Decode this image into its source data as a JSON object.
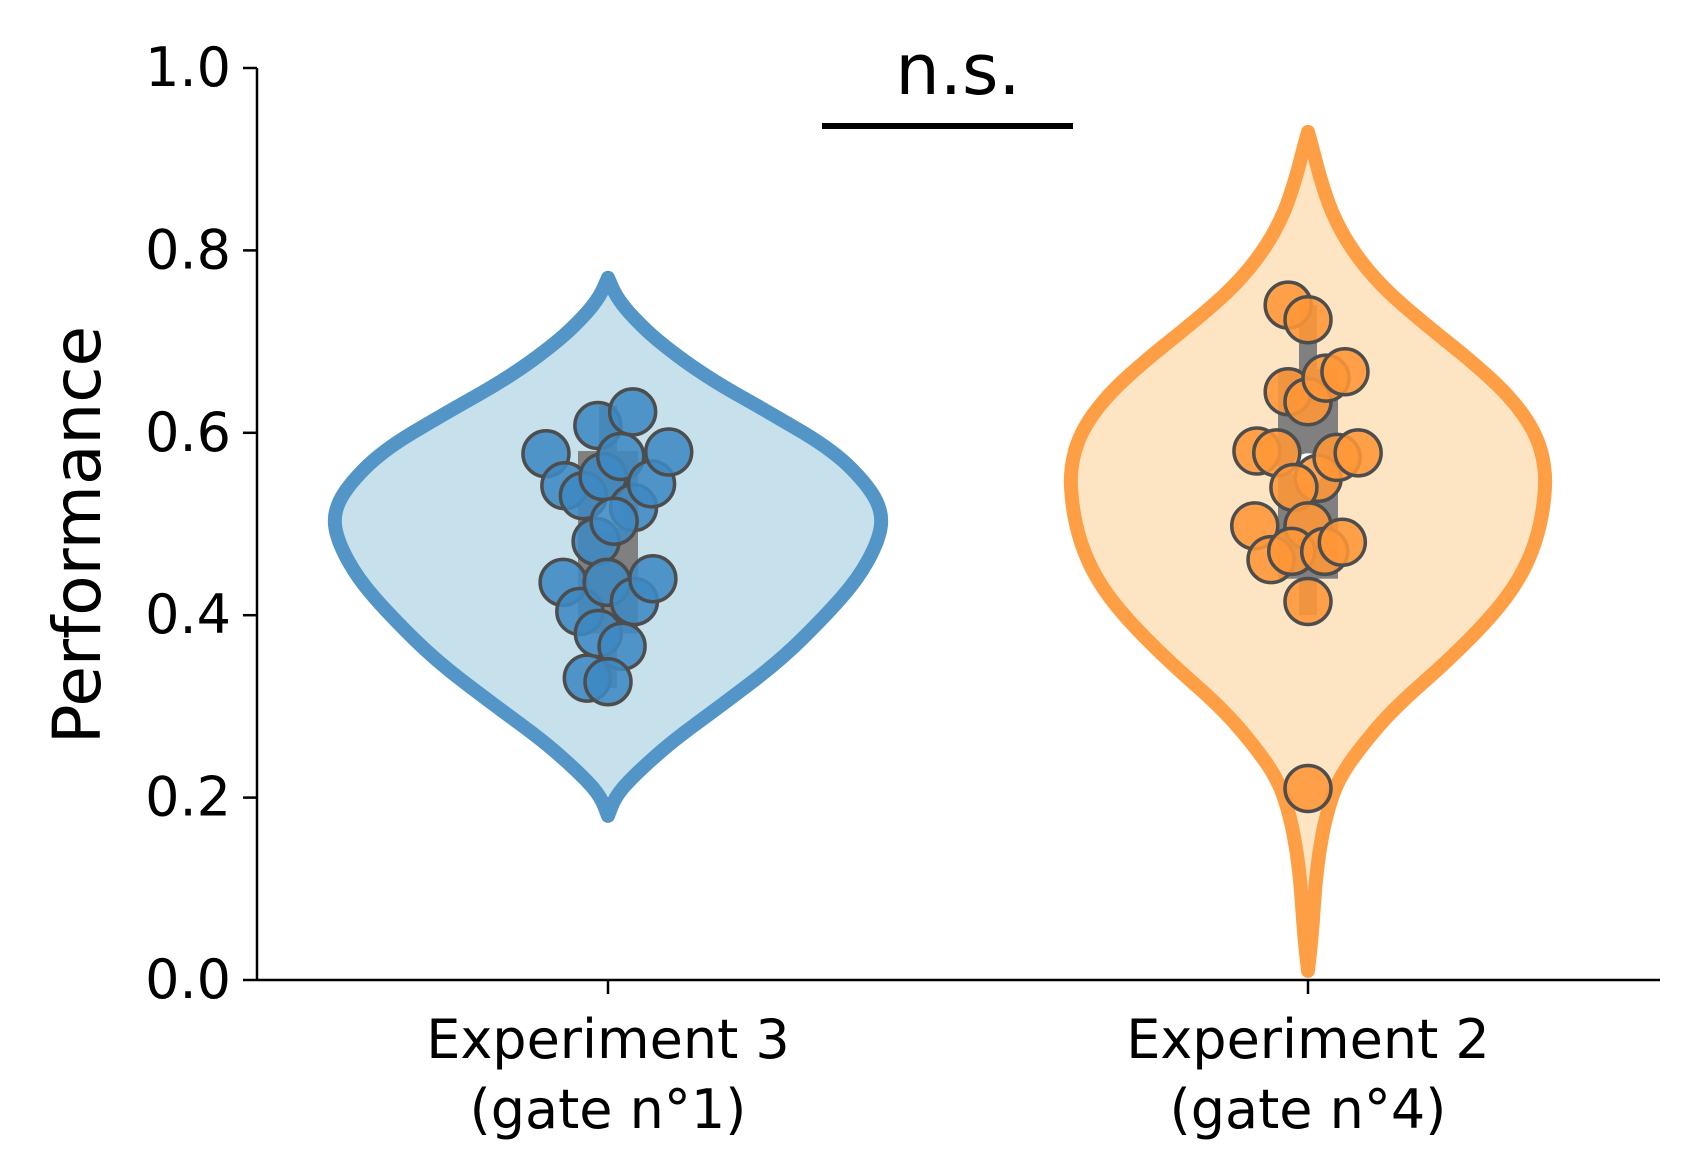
{
  "chart_data": {
    "type": "violin",
    "title": "",
    "xlabel": "",
    "ylabel": "Performance",
    "ylim": [
      0,
      1
    ],
    "yticks": [
      "0.0",
      "0.2",
      "0.4",
      "0.6",
      "0.8",
      "1.0"
    ],
    "significance": "n.s.",
    "grid": false,
    "colors": {
      "exp3_edge": "#4a90c4",
      "exp3_fill": "#c3e0ec",
      "exp3_point": "#3f89c3",
      "exp2_edge": "#ff9a3c",
      "exp2_fill": "#fde3c0",
      "exp2_point": "#ff9637",
      "box": "#808080"
    },
    "groups": [
      {
        "label_line1": "Experiment 3",
        "label_line2": "(gate n°1)",
        "median": 0.51,
        "q1": 0.38,
        "q3": 0.58,
        "whisker_low": 0.32,
        "whisker_high": 0.63,
        "range": [
          0.18,
          0.77
        ],
        "points": [
          {
            "x": -1.41,
            "y": 0.577
          },
          {
            "x": -0.98,
            "y": 0.542
          },
          {
            "x": -0.56,
            "y": 0.531
          },
          {
            "x": -0.23,
            "y": 0.608
          },
          {
            "x": -0.11,
            "y": 0.552
          },
          {
            "x": 0.29,
            "y": 0.574
          },
          {
            "x": 0.56,
            "y": 0.623
          },
          {
            "x": 0.58,
            "y": 0.518
          },
          {
            "x": 0.99,
            "y": 0.544
          },
          {
            "x": 1.38,
            "y": 0.579
          },
          {
            "x": -0.27,
            "y": 0.481
          },
          {
            "x": 0.14,
            "y": 0.503
          },
          {
            "x": -1.02,
            "y": 0.436
          },
          {
            "x": -0.64,
            "y": 0.404
          },
          {
            "x": -0.02,
            "y": 0.436
          },
          {
            "x": 0.6,
            "y": 0.415
          },
          {
            "x": 1.02,
            "y": 0.44
          },
          {
            "x": -0.22,
            "y": 0.38
          },
          {
            "x": 0.32,
            "y": 0.366
          },
          {
            "x": -0.47,
            "y": 0.331
          },
          {
            "x": 0.0,
            "y": 0.327
          }
        ]
      },
      {
        "label_line1": "Experiment 2",
        "label_line2": "(gate n°4)",
        "median": 0.56,
        "q1": 0.44,
        "q3": 0.67,
        "whisker_low": 0.4,
        "whisker_high": 0.74,
        "range": [
          0.01,
          0.93
        ],
        "points": [
          {
            "x": -0.45,
            "y": 0.74
          },
          {
            "x": 0.0,
            "y": 0.724
          },
          {
            "x": -0.45,
            "y": 0.645
          },
          {
            "x": 0.0,
            "y": 0.634
          },
          {
            "x": 0.41,
            "y": 0.66
          },
          {
            "x": 0.84,
            "y": 0.667
          },
          {
            "x": -1.16,
            "y": 0.58
          },
          {
            "x": -0.71,
            "y": 0.578
          },
          {
            "x": 0.23,
            "y": 0.55
          },
          {
            "x": 0.66,
            "y": 0.573
          },
          {
            "x": 1.14,
            "y": 0.578
          },
          {
            "x": -0.32,
            "y": 0.54
          },
          {
            "x": 0.0,
            "y": 0.498
          },
          {
            "x": -1.21,
            "y": 0.498
          },
          {
            "x": -0.84,
            "y": 0.461
          },
          {
            "x": -0.37,
            "y": 0.47
          },
          {
            "x": 0.38,
            "y": 0.47
          },
          {
            "x": 0.78,
            "y": 0.48
          },
          {
            "x": 0.0,
            "y": 0.415
          },
          {
            "x": 0.0,
            "y": 0.21
          }
        ]
      }
    ]
  }
}
